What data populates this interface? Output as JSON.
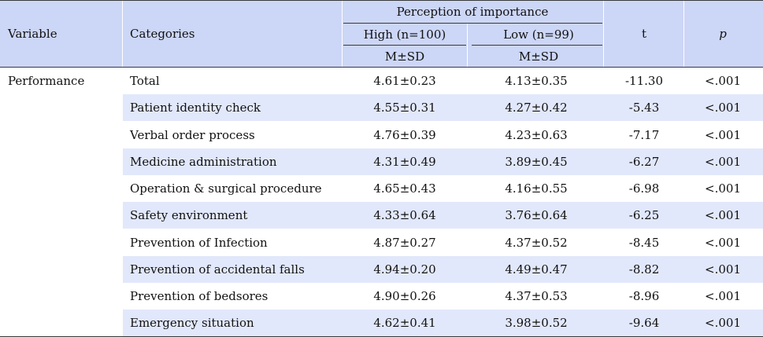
{
  "table": {
    "headers": {
      "variable": "Variable",
      "categories": "Categories",
      "group": "Perception of importance",
      "high": "High (n=100)",
      "low": "Low (n=99)",
      "stat_high": "M±SD",
      "stat_low": "M±SD",
      "t": "t",
      "p": "p"
    },
    "variable_label": "Performance",
    "rows": [
      {
        "category": "Total",
        "high": "4.61±0.23",
        "low": "4.13±0.35",
        "t": "-11.30",
        "p": "<.001"
      },
      {
        "category": "Patient identity check",
        "high": "4.55±0.31",
        "low": "4.27±0.42",
        "t": "-5.43",
        "p": "<.001"
      },
      {
        "category": "Verbal order process",
        "high": "4.76±0.39",
        "low": "4.23±0.63",
        "t": "-7.17",
        "p": "<.001"
      },
      {
        "category": "Medicine administration",
        "high": "4.31±0.49",
        "low": "3.89±0.45",
        "t": "-6.27",
        "p": "<.001"
      },
      {
        "category": "Operation & surgical procedure",
        "high": "4.65±0.43",
        "low": "4.16±0.55",
        "t": "-6.98",
        "p": "<.001"
      },
      {
        "category": "Safety environment",
        "high": "4.33±0.64",
        "low": "3.76±0.64",
        "t": "-6.25",
        "p": "<.001"
      },
      {
        "category": "Prevention of Infection",
        "high": "4.87±0.27",
        "low": "4.37±0.52",
        "t": "-8.45",
        "p": "<.001"
      },
      {
        "category": "Prevention of accidental falls",
        "high": "4.94±0.20",
        "low": "4.49±0.47",
        "t": "-8.82",
        "p": "<.001"
      },
      {
        "category": "Prevention of bedsores",
        "high": "4.90±0.26",
        "low": "4.37±0.53",
        "t": "-8.96",
        "p": "<.001"
      },
      {
        "category": "Emergency situation",
        "high": "4.62±0.41",
        "low": "3.98±0.52",
        "t": "-9.64",
        "p": "<.001"
      }
    ]
  }
}
